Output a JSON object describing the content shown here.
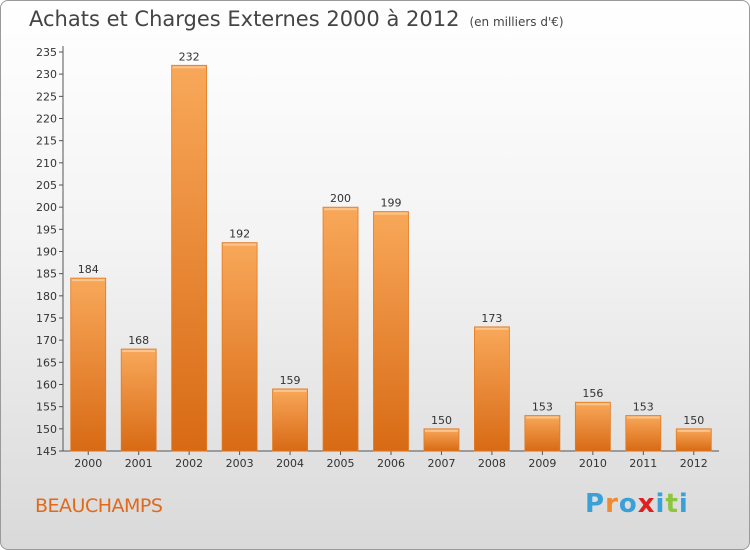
{
  "chart_data": {
    "type": "bar",
    "title": "Achats et Charges Externes 2000 à 2012",
    "subtitle": "(en milliers d'€)",
    "categories": [
      "2000",
      "2001",
      "2002",
      "2003",
      "2004",
      "2005",
      "2006",
      "2007",
      "2008",
      "2009",
      "2010",
      "2011",
      "2012"
    ],
    "values": [
      184,
      168,
      232,
      192,
      159,
      200,
      199,
      150,
      173,
      153,
      156,
      153,
      150
    ],
    "ylim": [
      145,
      235
    ],
    "yticks": [
      145,
      150,
      155,
      160,
      165,
      170,
      175,
      180,
      185,
      190,
      195,
      200,
      205,
      210,
      215,
      220,
      225,
      230,
      235
    ],
    "grid": false,
    "bar_color": "#f08a30"
  },
  "footer": {
    "town": "BEAUCHAMPS",
    "logo_letters": [
      "P",
      "r",
      "o",
      "x",
      "i",
      "t",
      "i"
    ],
    "logo_colors": [
      "#3aa0d8",
      "#f08a30",
      "#3aa0d8",
      "#e02020",
      "#3aa0d8",
      "#8cc63f",
      "#3aa0d8"
    ]
  }
}
